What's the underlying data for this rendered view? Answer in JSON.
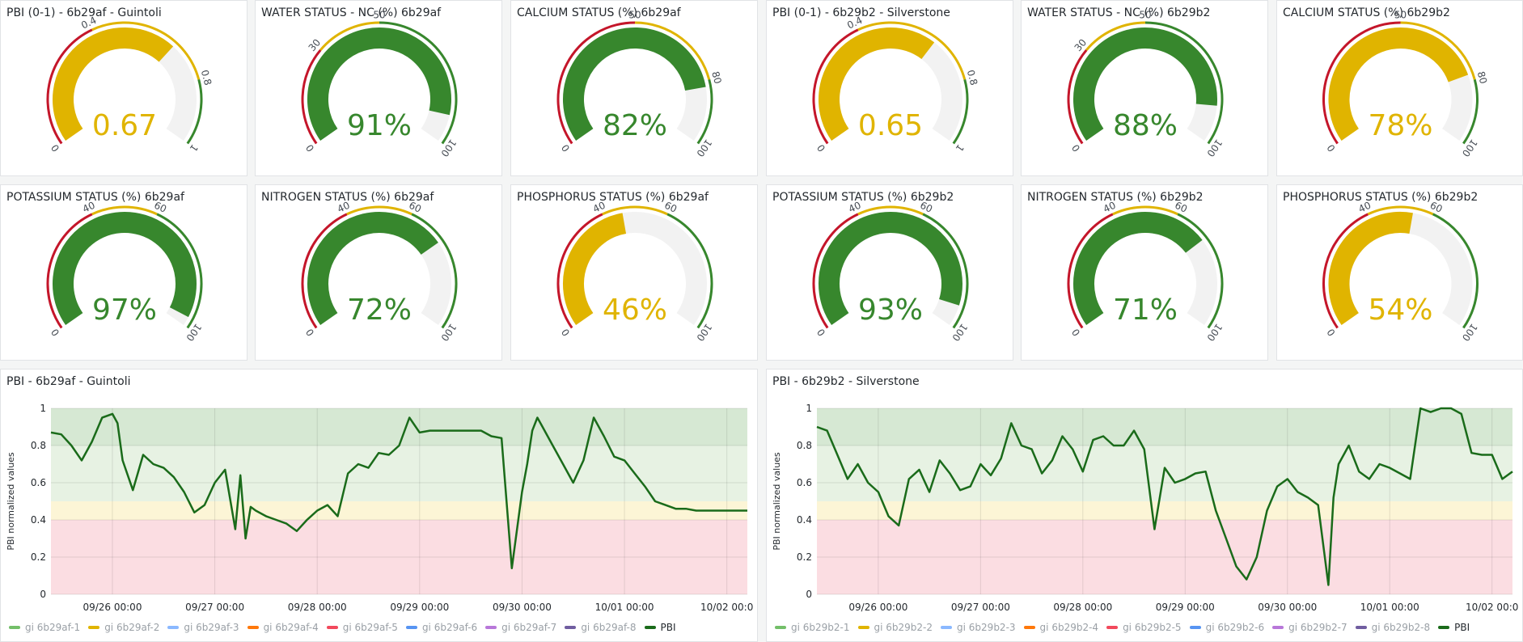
{
  "gauges": [
    {
      "title": "PBI (0-1) - 6b29af - Guintoli",
      "display": "0.67",
      "value": 0.67,
      "min": 0,
      "max": 1,
      "color": "#e0b400",
      "thresholds": [
        0,
        0.4,
        0.8,
        1
      ],
      "tick_labels": [
        "0",
        "0.4",
        "0.8",
        "1"
      ]
    },
    {
      "title": "WATER STATUS - NC (%) 6b29af",
      "display": "91%",
      "value": 91,
      "min": 0,
      "max": 100,
      "color": "#37872d",
      "thresholds": [
        0,
        30,
        50,
        100
      ],
      "tick_labels": [
        "0",
        "30",
        "50",
        "100"
      ]
    },
    {
      "title": "CALCIUM STATUS (%) 6b29af",
      "display": "82%",
      "value": 82,
      "min": 0,
      "max": 100,
      "color": "#37872d",
      "thresholds": [
        0,
        50,
        80,
        100
      ],
      "tick_labels": [
        "0",
        "50",
        "80",
        "100"
      ]
    },
    {
      "title": "PBI (0-1) - 6b29b2 - Silverstone",
      "display": "0.65",
      "value": 0.65,
      "min": 0,
      "max": 1,
      "color": "#e0b400",
      "thresholds": [
        0,
        0.4,
        0.8,
        1
      ],
      "tick_labels": [
        "0",
        "0.4",
        "0.8",
        "1"
      ]
    },
    {
      "title": "WATER STATUS - NC (%) 6b29b2",
      "display": "88%",
      "value": 88,
      "min": 0,
      "max": 100,
      "color": "#37872d",
      "thresholds": [
        0,
        30,
        50,
        100
      ],
      "tick_labels": [
        "0",
        "30",
        "50",
        "100"
      ]
    },
    {
      "title": "CALCIUM STATUS (%) 6b29b2",
      "display": "78%",
      "value": 78,
      "min": 0,
      "max": 100,
      "color": "#e0b400",
      "thresholds": [
        0,
        50,
        80,
        100
      ],
      "tick_labels": [
        "0",
        "50",
        "80",
        "100"
      ]
    },
    {
      "title": "POTASSIUM STATUS (%) 6b29af",
      "display": "97%",
      "value": 97,
      "min": 0,
      "max": 100,
      "color": "#37872d",
      "thresholds": [
        0,
        40,
        60,
        100
      ],
      "tick_labels": [
        "0",
        "40",
        "60",
        "100"
      ]
    },
    {
      "title": "NITROGEN STATUS (%) 6b29af",
      "display": "72%",
      "value": 72,
      "min": 0,
      "max": 100,
      "color": "#37872d",
      "thresholds": [
        0,
        40,
        60,
        100
      ],
      "tick_labels": [
        "0",
        "40",
        "60",
        "100"
      ]
    },
    {
      "title": "PHOSPHORUS STATUS (%) 6b29af",
      "display": "46%",
      "value": 46,
      "min": 0,
      "max": 100,
      "color": "#e0b400",
      "thresholds": [
        0,
        40,
        60,
        100
      ],
      "tick_labels": [
        "0",
        "40",
        "60",
        "100"
      ]
    },
    {
      "title": "POTASSIUM STATUS (%) 6b29b2",
      "display": "93%",
      "value": 93,
      "min": 0,
      "max": 100,
      "color": "#37872d",
      "thresholds": [
        0,
        40,
        60,
        100
      ],
      "tick_labels": [
        "0",
        "40",
        "60",
        "100"
      ]
    },
    {
      "title": "NITROGEN STATUS (%) 6b29b2",
      "display": "71%",
      "value": 71,
      "min": 0,
      "max": 100,
      "color": "#37872d",
      "thresholds": [
        0,
        40,
        60,
        100
      ],
      "tick_labels": [
        "0",
        "40",
        "60",
        "100"
      ]
    },
    {
      "title": "PHOSPHORUS STATUS (%) 6b29b2",
      "display": "54%",
      "value": 54,
      "min": 0,
      "max": 100,
      "color": "#e0b400",
      "thresholds": [
        0,
        40,
        60,
        100
      ],
      "tick_labels": [
        "0",
        "40",
        "60",
        "100"
      ]
    }
  ],
  "threshold_colors": {
    "low": "#c4162a",
    "mid": "#e0b400",
    "high": "#37872d",
    "background": "#f2f2f2"
  },
  "timeseries": [
    {
      "title": "PBI - 6b29af - Guintoli",
      "ylabel": "PBI normalized values",
      "y_ticks": [
        "0",
        "0.2",
        "0.4",
        "0.6",
        "0.8",
        "1"
      ],
      "x_ticks": [
        "09/26 00:00",
        "09/27 00:00",
        "09/28 00:00",
        "09/29 00:00",
        "09/30 00:00",
        "10/01 00:00",
        "10/02 00:0"
      ],
      "legend": [
        {
          "label": "gi 6b29af-1",
          "color": "#73bf69",
          "active": false
        },
        {
          "label": "gi 6b29af-2",
          "color": "#e0b400",
          "active": false
        },
        {
          "label": "gi 6b29af-3",
          "color": "#8ab8ff",
          "active": false
        },
        {
          "label": "gi 6b29af-4",
          "color": "#ff780a",
          "active": false
        },
        {
          "label": "gi 6b29af-5",
          "color": "#f2495c",
          "active": false
        },
        {
          "label": "gi 6b29af-6",
          "color": "#5794f2",
          "active": false
        },
        {
          "label": "gi 6b29af-7",
          "color": "#b877d9",
          "active": false
        },
        {
          "label": "gi 6b29af-8",
          "color": "#705da0",
          "active": false
        },
        {
          "label": "PBI",
          "color": "#1a6b1a",
          "active": true
        }
      ],
      "chart_data": {
        "type": "line",
        "ylim": [
          0,
          1
        ],
        "x_range_days": [
          25.4,
          32.2
        ],
        "series": [
          {
            "name": "PBI",
            "x": [
              25.4,
              25.5,
              25.6,
              25.7,
              25.8,
              25.9,
              26.0,
              26.05,
              26.1,
              26.2,
              26.3,
              26.4,
              26.5,
              26.6,
              26.7,
              26.8,
              26.9,
              27.0,
              27.1,
              27.2,
              27.25,
              27.3,
              27.35,
              27.4,
              27.5,
              27.6,
              27.7,
              27.8,
              27.9,
              28.0,
              28.1,
              28.2,
              28.3,
              28.4,
              28.5,
              28.6,
              28.7,
              28.8,
              28.9,
              29.0,
              29.1,
              29.2,
              29.3,
              29.4,
              29.5,
              29.6,
              29.7,
              29.8,
              29.9,
              30.0,
              30.05,
              30.1,
              30.15,
              30.2,
              30.3,
              30.4,
              30.5,
              30.6,
              30.7,
              30.8,
              30.9,
              31.0,
              31.1,
              31.2,
              31.3,
              31.4,
              31.5,
              31.6,
              31.7,
              31.8,
              31.9,
              32.0,
              32.1,
              32.2
            ],
            "y": [
              0.87,
              0.86,
              0.8,
              0.72,
              0.82,
              0.95,
              0.97,
              0.92,
              0.72,
              0.56,
              0.75,
              0.7,
              0.68,
              0.63,
              0.55,
              0.44,
              0.48,
              0.6,
              0.67,
              0.35,
              0.64,
              0.3,
              0.47,
              0.45,
              0.42,
              0.4,
              0.38,
              0.34,
              0.4,
              0.45,
              0.48,
              0.42,
              0.65,
              0.7,
              0.68,
              0.76,
              0.75,
              0.8,
              0.95,
              0.87,
              0.88,
              0.88,
              0.88,
              0.88,
              0.88,
              0.88,
              0.85,
              0.84,
              0.14,
              0.55,
              0.7,
              0.88,
              0.95,
              0.9,
              0.8,
              0.7,
              0.6,
              0.72,
              0.95,
              0.85,
              0.74,
              0.72,
              0.65,
              0.58,
              0.5,
              0.48,
              0.46,
              0.46,
              0.45,
              0.45,
              0.45,
              0.45,
              0.45,
              0.45
            ]
          }
        ]
      }
    },
    {
      "title": "PBI - 6b29b2 - Silverstone",
      "ylabel": "PBI normalized values",
      "y_ticks": [
        "0",
        "0.2",
        "0.4",
        "0.6",
        "0.8",
        "1"
      ],
      "x_ticks": [
        "09/26 00:00",
        "09/27 00:00",
        "09/28 00:00",
        "09/29 00:00",
        "09/30 00:00",
        "10/01 00:00",
        "10/02 00:0"
      ],
      "legend": [
        {
          "label": "gi 6b29b2-1",
          "color": "#73bf69",
          "active": false
        },
        {
          "label": "gi 6b29b2-2",
          "color": "#e0b400",
          "active": false
        },
        {
          "label": "gi 6b29b2-3",
          "color": "#8ab8ff",
          "active": false
        },
        {
          "label": "gi 6b29b2-4",
          "color": "#ff780a",
          "active": false
        },
        {
          "label": "gi 6b29b2-5",
          "color": "#f2495c",
          "active": false
        },
        {
          "label": "gi 6b29b2-6",
          "color": "#5794f2",
          "active": false
        },
        {
          "label": "gi 6b29b2-7",
          "color": "#b877d9",
          "active": false
        },
        {
          "label": "gi 6b29b2-8",
          "color": "#705da0",
          "active": false
        },
        {
          "label": "PBI",
          "color": "#1a6b1a",
          "active": true
        }
      ],
      "chart_data": {
        "type": "line",
        "ylim": [
          0,
          1
        ],
        "x_range_days": [
          25.4,
          32.2
        ],
        "series": [
          {
            "name": "PBI",
            "x": [
              25.4,
              25.5,
              25.6,
              25.7,
              25.8,
              25.9,
              26.0,
              26.1,
              26.2,
              26.3,
              26.4,
              26.5,
              26.6,
              26.7,
              26.8,
              26.9,
              27.0,
              27.1,
              27.2,
              27.3,
              27.4,
              27.5,
              27.6,
              27.7,
              27.8,
              27.9,
              28.0,
              28.1,
              28.2,
              28.3,
              28.4,
              28.5,
              28.6,
              28.7,
              28.8,
              28.9,
              29.0,
              29.1,
              29.2,
              29.3,
              29.4,
              29.5,
              29.6,
              29.7,
              29.8,
              29.9,
              30.0,
              30.1,
              30.2,
              30.3,
              30.4,
              30.45,
              30.5,
              30.6,
              30.7,
              30.8,
              30.9,
              31.0,
              31.1,
              31.2,
              31.3,
              31.4,
              31.5,
              31.6,
              31.7,
              31.8,
              31.9,
              32.0,
              32.1,
              32.2
            ],
            "y": [
              0.9,
              0.88,
              0.75,
              0.62,
              0.7,
              0.6,
              0.55,
              0.42,
              0.37,
              0.62,
              0.67,
              0.55,
              0.72,
              0.65,
              0.56,
              0.58,
              0.7,
              0.64,
              0.73,
              0.92,
              0.8,
              0.78,
              0.65,
              0.72,
              0.85,
              0.78,
              0.66,
              0.83,
              0.85,
              0.8,
              0.8,
              0.88,
              0.78,
              0.35,
              0.68,
              0.6,
              0.62,
              0.65,
              0.66,
              0.45,
              0.3,
              0.15,
              0.08,
              0.2,
              0.45,
              0.58,
              0.62,
              0.55,
              0.52,
              0.48,
              0.05,
              0.52,
              0.7,
              0.8,
              0.66,
              0.62,
              0.7,
              0.68,
              0.65,
              0.62,
              1.0,
              0.98,
              1.0,
              1.0,
              0.97,
              0.76,
              0.75,
              0.75,
              0.62,
              0.66
            ]
          }
        ]
      }
    }
  ]
}
